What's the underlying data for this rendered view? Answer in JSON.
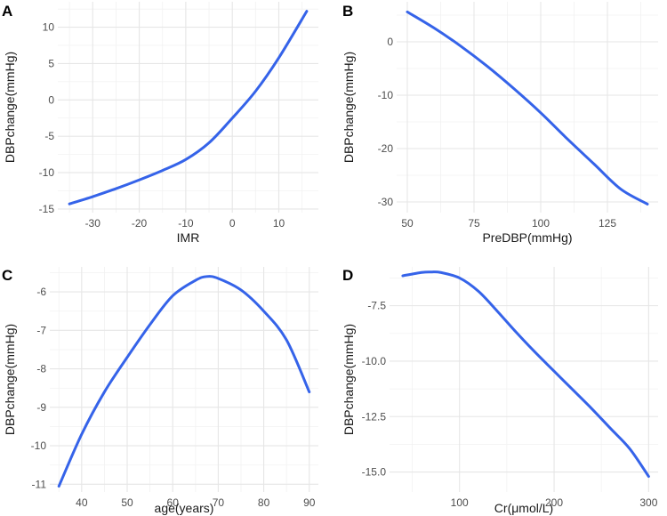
{
  "colors": {
    "line": "#3563e9",
    "grid_major": "#e6e6e6",
    "grid_minor": "#f2f2f2",
    "tick_text": "#4d4d4d"
  },
  "chart_data": [
    {
      "panel": "A",
      "type": "line",
      "xlabel": "IMR",
      "ylabel": "DBPchange(mmHg)",
      "xlim": [
        -37.5,
        18.5
      ],
      "ylim": [
        -15.5,
        13.5
      ],
      "xticks": [
        -30,
        -20,
        -10,
        0,
        10
      ],
      "yticks": [
        -15,
        -10,
        -5,
        0,
        5,
        10
      ],
      "grid": true,
      "series": [
        {
          "x": [
            -35,
            -30,
            -25,
            -20,
            -15,
            -10,
            -5,
            0,
            5,
            10,
            16
          ],
          "y": [
            -14.3,
            -13.3,
            -12.2,
            -11.0,
            -9.7,
            -8.2,
            -5.9,
            -2.5,
            1.2,
            5.8,
            12.2
          ]
        }
      ]
    },
    {
      "panel": "B",
      "type": "line",
      "xlabel": "PreDBP(mmHg)",
      "ylabel": "DBPchange(mmHg)",
      "xlim": [
        46,
        144
      ],
      "ylim": [
        -32,
        7.5
      ],
      "xticks": [
        50,
        75,
        100,
        125
      ],
      "yticks": [
        -30,
        -20,
        -10,
        0
      ],
      "grid": true,
      "series": [
        {
          "x": [
            50,
            60,
            70,
            80,
            90,
            100,
            110,
            120,
            130,
            140
          ],
          "y": [
            5.6,
            2.6,
            -0.8,
            -4.6,
            -8.8,
            -13.3,
            -18.2,
            -22.9,
            -27.6,
            -30.4
          ]
        }
      ]
    },
    {
      "panel": "C",
      "type": "line",
      "xlabel": "age(years)",
      "ylabel": "DBPchange(mmHg)",
      "xlim": [
        33,
        92
      ],
      "ylim": [
        -11.2,
        -5.35
      ],
      "xticks": [
        40,
        50,
        60,
        70,
        80,
        90
      ],
      "yticks": [
        -11,
        -10,
        -9,
        -8,
        -7,
        -6
      ],
      "grid": true,
      "series": [
        {
          "x": [
            35,
            40,
            45,
            50,
            55,
            60,
            65,
            67.5,
            70,
            75,
            80,
            85,
            90
          ],
          "y": [
            -11.05,
            -9.7,
            -8.6,
            -7.7,
            -6.85,
            -6.1,
            -5.7,
            -5.6,
            -5.65,
            -5.95,
            -6.5,
            -7.25,
            -8.6
          ]
        }
      ]
    },
    {
      "panel": "D",
      "type": "line",
      "xlabel": "Cr(μmol/L)",
      "ylabel": "DBPchange(mmHg)",
      "xlim": [
        26,
        310
      ],
      "ylim": [
        -15.9,
        -5.75
      ],
      "xticks": [
        100,
        200,
        300
      ],
      "yticks": [
        -15.0,
        -12.5,
        -10.0,
        -7.5
      ],
      "grid": true,
      "series": [
        {
          "x": [
            40,
            60,
            70,
            80,
            100,
            120,
            140,
            160,
            180,
            200,
            220,
            240,
            260,
            280,
            300
          ],
          "y": [
            -6.15,
            -6.0,
            -5.98,
            -6.0,
            -6.25,
            -6.85,
            -7.75,
            -8.7,
            -9.6,
            -10.45,
            -11.3,
            -12.15,
            -13.05,
            -13.95,
            -15.2
          ]
        }
      ]
    }
  ]
}
